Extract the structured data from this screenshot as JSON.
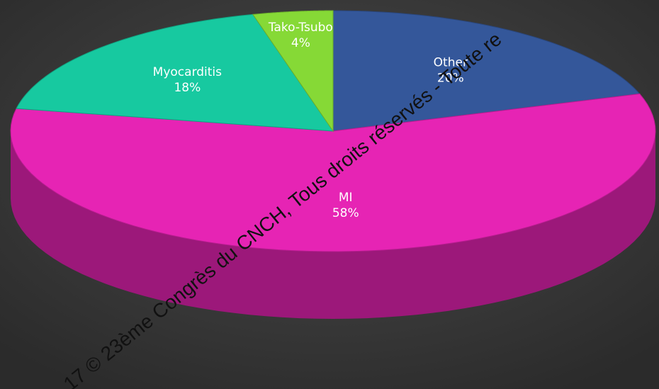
{
  "chart_data": {
    "type": "pie",
    "categories": [
      "Other",
      "MI",
      "Myocarditis",
      "Tako-Tsubo"
    ],
    "values": [
      20,
      58,
      18,
      4
    ],
    "value_labels": [
      "20%",
      "58%",
      "18%",
      "4%"
    ],
    "colors": [
      "#34579a",
      "#e624b4",
      "#17c9a0",
      "#86d936"
    ],
    "annotation": "17 © 23ème Congrès du CNCH, Tous droits réservés - Toute re"
  }
}
